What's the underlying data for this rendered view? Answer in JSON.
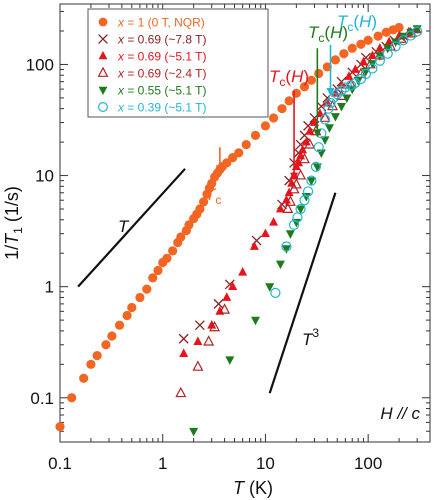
{
  "chart_data": {
    "type": "scatter",
    "title": "",
    "xlabel": "T (K)",
    "ylabel": "1/T1 (1/s)",
    "xscale": "log",
    "yscale": "log",
    "xlim": [
      0.1,
      400
    ],
    "ylim": [
      0.04,
      350
    ],
    "x_tick_labels": [
      "0.1",
      "1",
      "10",
      "100"
    ],
    "y_tick_labels": [
      "0.1",
      "1",
      "10",
      "100"
    ],
    "legend_placement": "top-left",
    "field_label": "H // c",
    "series": [
      {
        "name": "x = 1 (0 T, NQR)",
        "marker": "filled-circle",
        "color": "#f26522",
        "points": [
          [
            0.1,
            0.055
          ],
          [
            0.13,
            0.1
          ],
          [
            0.17,
            0.15
          ],
          [
            0.2,
            0.2
          ],
          [
            0.23,
            0.24
          ],
          [
            0.28,
            0.3
          ],
          [
            0.32,
            0.36
          ],
          [
            0.38,
            0.45
          ],
          [
            0.45,
            0.55
          ],
          [
            0.5,
            0.65
          ],
          [
            0.6,
            0.8
          ],
          [
            0.7,
            0.95
          ],
          [
            0.8,
            1.2
          ],
          [
            0.9,
            1.4
          ],
          [
            1.0,
            1.65
          ],
          [
            1.1,
            1.8
          ],
          [
            1.25,
            2.1
          ],
          [
            1.4,
            2.5
          ],
          [
            1.5,
            2.8
          ],
          [
            1.7,
            3.2
          ],
          [
            1.8,
            3.6
          ],
          [
            2.0,
            4.1
          ],
          [
            2.15,
            4.5
          ],
          [
            2.3,
            5.0
          ],
          [
            2.5,
            5.8
          ],
          [
            2.7,
            6.8
          ],
          [
            2.85,
            7.7
          ],
          [
            3.0,
            8.5
          ],
          [
            3.2,
            9.7
          ],
          [
            3.4,
            10.5
          ],
          [
            3.6,
            11.3
          ],
          [
            3.8,
            12
          ],
          [
            4.2,
            13
          ],
          [
            4.8,
            14.5
          ],
          [
            5.5,
            16
          ],
          [
            6.5,
            19
          ],
          [
            8,
            23
          ],
          [
            10,
            28
          ],
          [
            12,
            33
          ],
          [
            14.5,
            40
          ],
          [
            17,
            47
          ],
          [
            20,
            55
          ],
          [
            24,
            63
          ],
          [
            28,
            72
          ],
          [
            33,
            83
          ],
          [
            40,
            95
          ],
          [
            48,
            110
          ],
          [
            58,
            125
          ],
          [
            70,
            140
          ],
          [
            85,
            152
          ],
          [
            100,
            165
          ],
          [
            125,
            180
          ],
          [
            150,
            195
          ],
          [
            175,
            205
          ],
          [
            200,
            215
          ]
        ]
      },
      {
        "name": "x = 0.69 (~7.8 T)",
        "marker": "cross",
        "color": "#8b2323",
        "points": [
          [
            1.6,
            0.34
          ],
          [
            2.3,
            0.45
          ],
          [
            3.5,
            0.7
          ],
          [
            4.5,
            1.05
          ],
          [
            8.2,
            2.6
          ],
          [
            14.5,
            5.5
          ],
          [
            17,
            9
          ],
          [
            19,
            13
          ],
          [
            21,
            16
          ],
          [
            22,
            19
          ],
          [
            24,
            23
          ],
          [
            26,
            28
          ],
          [
            30,
            33
          ],
          [
            35,
            42
          ],
          [
            40,
            50
          ],
          [
            50,
            60
          ],
          [
            55,
            70
          ],
          [
            70,
            85
          ],
          [
            85,
            100
          ],
          [
            95,
            115
          ],
          [
            120,
            130
          ],
          [
            150,
            145
          ],
          [
            180,
            165
          ],
          [
            220,
            180
          ],
          [
            270,
            195
          ]
        ]
      },
      {
        "name": "x = 0.69 (~5.1 T)",
        "marker": "filled-triangle",
        "color": "#e8141c",
        "points": [
          [
            1.6,
            0.25
          ],
          [
            2.2,
            0.32
          ],
          [
            3.0,
            0.45
          ],
          [
            3.6,
            0.6
          ],
          [
            4.2,
            0.8
          ],
          [
            4.8,
            1.0
          ],
          [
            6.0,
            1.35
          ],
          [
            7.8,
            2.3
          ],
          [
            10,
            3.0
          ],
          [
            12,
            3.8
          ],
          [
            14,
            5.0
          ],
          [
            16,
            6.0
          ],
          [
            17,
            7.0
          ],
          [
            18,
            8.5
          ],
          [
            19,
            10
          ],
          [
            20,
            12
          ],
          [
            21,
            13
          ],
          [
            22,
            15
          ],
          [
            23,
            17
          ],
          [
            25,
            20
          ],
          [
            27,
            25
          ],
          [
            30,
            30
          ],
          [
            34,
            36
          ],
          [
            40,
            45
          ],
          [
            48,
            55
          ],
          [
            55,
            65
          ],
          [
            65,
            78
          ],
          [
            75,
            90
          ],
          [
            90,
            105
          ],
          [
            110,
            120
          ],
          [
            130,
            140
          ],
          [
            160,
            160
          ],
          [
            200,
            180
          ],
          [
            250,
            195
          ],
          [
            300,
            205
          ]
        ]
      },
      {
        "name": "x = 0.69 (~2.4 T)",
        "marker": "open-triangle",
        "color": "#b22222",
        "points": [
          [
            1.5,
            0.11
          ],
          [
            2.2,
            0.19
          ],
          [
            2.8,
            0.32
          ],
          [
            3.2,
            0.43
          ],
          [
            4.0,
            0.62
          ],
          [
            16.5,
            5.0
          ],
          [
            17.5,
            5.8
          ],
          [
            19,
            7.5
          ],
          [
            20,
            8.3
          ],
          [
            22,
            10
          ],
          [
            24,
            14
          ],
          [
            27,
            19
          ],
          [
            31,
            25
          ],
          [
            38,
            33
          ],
          [
            45,
            42
          ],
          [
            55,
            52
          ],
          [
            68,
            66
          ],
          [
            85,
            82
          ],
          [
            105,
            100
          ],
          [
            130,
            120
          ],
          [
            165,
            145
          ],
          [
            210,
            170
          ],
          [
            260,
            190
          ]
        ]
      },
      {
        "name": "x = 0.55 (~5.1 T)",
        "marker": "filled-inverted-triangle",
        "color": "#1d7a1d",
        "points": [
          [
            2.0,
            0.05
          ],
          [
            4.5,
            0.22
          ],
          [
            8,
            0.5
          ],
          [
            11,
            1.0
          ],
          [
            14,
            1.6
          ],
          [
            16,
            2.2
          ],
          [
            17.5,
            3.0
          ],
          [
            20,
            3.8
          ],
          [
            22,
            5.0
          ],
          [
            25,
            6.5
          ],
          [
            28,
            9
          ],
          [
            32,
            12
          ],
          [
            35,
            16
          ],
          [
            38,
            21
          ],
          [
            42,
            27
          ],
          [
            48,
            34
          ],
          [
            55,
            42
          ],
          [
            62,
            50
          ],
          [
            70,
            60
          ],
          [
            80,
            72
          ],
          [
            95,
            87
          ],
          [
            110,
            102
          ],
          [
            130,
            120
          ],
          [
            155,
            140
          ],
          [
            185,
            160
          ],
          [
            220,
            180
          ],
          [
            260,
            195
          ],
          [
            300,
            210
          ]
        ]
      },
      {
        "name": "x = 0.39 (~5.1 T)",
        "marker": "open-circle",
        "color": "#21b6d3",
        "points": [
          [
            12.5,
            0.88
          ],
          [
            16,
            2.3
          ],
          [
            19,
            3.6
          ],
          [
            20.5,
            4.2
          ],
          [
            22,
            5.0
          ],
          [
            24,
            6.0
          ],
          [
            26,
            7.2
          ],
          [
            28,
            9.0
          ],
          [
            31,
            12
          ],
          [
            33,
            18
          ],
          [
            35,
            24
          ],
          [
            38,
            32
          ],
          [
            41,
            40
          ],
          [
            43,
            45
          ],
          [
            46,
            50
          ],
          [
            50,
            54
          ],
          [
            55,
            58
          ],
          [
            60,
            62
          ],
          [
            68,
            65
          ],
          [
            75,
            68
          ],
          [
            85,
            74
          ],
          [
            95,
            82
          ],
          [
            110,
            92
          ],
          [
            130,
            108
          ],
          [
            155,
            125
          ],
          [
            185,
            145
          ],
          [
            220,
            165
          ],
          [
            260,
            182
          ],
          [
            300,
            198
          ]
        ]
      }
    ],
    "guides": [
      {
        "label": "T",
        "points": [
          [
            0.15,
            1.0
          ],
          [
            1.65,
            11.5
          ]
        ]
      },
      {
        "label": "T3",
        "points": [
          [
            11,
            0.11
          ],
          [
            48,
            7.0
          ]
        ]
      }
    ],
    "annotations": [
      {
        "label": "Tc",
        "color": "#f26522",
        "arrow_x": 3.6,
        "arrow_from": 18,
        "arrow_to": 10.5
      },
      {
        "label": "Tc(H)",
        "color": "#e8141c",
        "arrow_x": 19,
        "arrow_from": 58,
        "arrow_to": 9
      },
      {
        "label": "Tc(H)",
        "color": "#1d7a1d",
        "arrow_x": 32,
        "arrow_from": 140,
        "arrow_to": 22
      },
      {
        "label": "Tc(H)",
        "color": "#21b6d3",
        "arrow_x": 43,
        "arrow_from": 150,
        "arrow_to": 52
      }
    ]
  }
}
